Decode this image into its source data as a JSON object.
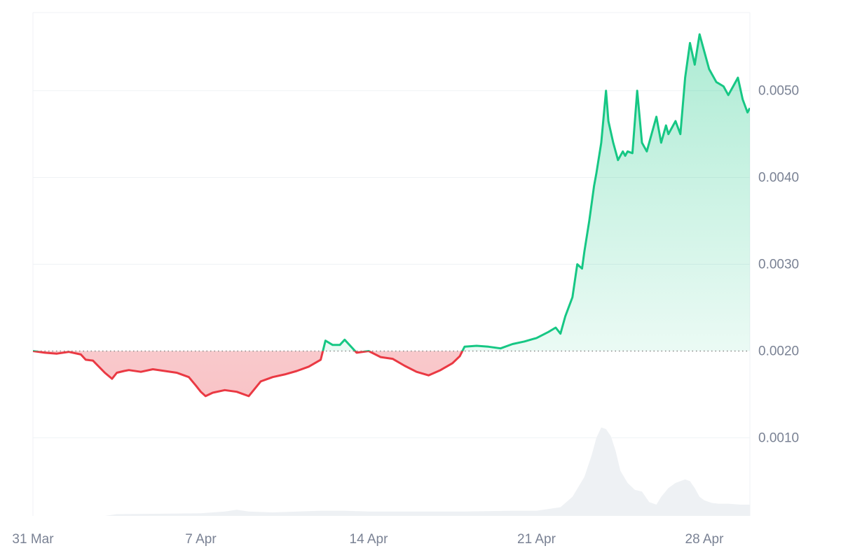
{
  "chart_data": {
    "type": "area",
    "baseline": 0.002,
    "ylim": [
      0.0001,
      0.0059
    ],
    "yticks": [
      0.001,
      0.002,
      0.003,
      0.004,
      0.005
    ],
    "ytick_labels": [
      "0.0010",
      "0.0020",
      "0.0030",
      "0.0040",
      "0.0050"
    ],
    "xticks": [
      "31 Mar",
      "7 Apr",
      "14 Apr",
      "21 Apr",
      "28 Apr"
    ],
    "xlim_days": [
      0,
      29.9
    ],
    "grid": true,
    "colors": {
      "above": "#16c784",
      "below": "#ea3943",
      "above_fill": "#16c784",
      "below_fill": "#ea3943",
      "grid": "#eff2f5",
      "baseline": "#888888",
      "volume": "#eef1f4",
      "tick_text": "#7a8294"
    },
    "series": [
      {
        "x": [
          0.0,
          0.5,
          1.0,
          1.5,
          2.0,
          2.2,
          2.5,
          3.0,
          3.3,
          3.5,
          3.8,
          4.0,
          4.5,
          5.0,
          5.5,
          6.0,
          6.5,
          6.8,
          7.0,
          7.2,
          7.5,
          8.0,
          8.5,
          9.0,
          9.5,
          10.0,
          10.5,
          11.0,
          11.5,
          12.0,
          12.2,
          12.5,
          12.8,
          13.0,
          13.5,
          14.0,
          14.5,
          15.0,
          15.5,
          16.0,
          16.5,
          17.0,
          17.5,
          17.8,
          18.0,
          18.5,
          19.0,
          19.5,
          20.0,
          20.5,
          21.0,
          21.5,
          21.8,
          22.0,
          22.2,
          22.5,
          22.7,
          22.9,
          23.0,
          23.2,
          23.4,
          23.5,
          23.7,
          23.9,
          24.0,
          24.2,
          24.4,
          24.6,
          24.7,
          24.8,
          25.0,
          25.2,
          25.4,
          25.6,
          25.8,
          26.0,
          26.2,
          26.4,
          26.5,
          26.6,
          26.8,
          27.0,
          27.2,
          27.4,
          27.6,
          27.8,
          28.0,
          28.2,
          28.5,
          28.8,
          29.0,
          29.2,
          29.4,
          29.6,
          29.8,
          29.9
        ],
        "y": [
          0.002,
          0.00198,
          0.00197,
          0.00199,
          0.00196,
          0.0019,
          0.00189,
          0.00175,
          0.00168,
          0.00175,
          0.00177,
          0.00178,
          0.00176,
          0.00179,
          0.00177,
          0.00175,
          0.0017,
          0.0016,
          0.00153,
          0.00148,
          0.00152,
          0.00155,
          0.00153,
          0.00148,
          0.00165,
          0.0017,
          0.00173,
          0.00177,
          0.00182,
          0.0019,
          0.00212,
          0.00207,
          0.00207,
          0.00213,
          0.00198,
          0.002,
          0.00193,
          0.00191,
          0.00183,
          0.00176,
          0.00172,
          0.00178,
          0.00186,
          0.00194,
          0.00205,
          0.00206,
          0.00205,
          0.00203,
          0.00208,
          0.00211,
          0.00215,
          0.00222,
          0.00227,
          0.0022,
          0.0024,
          0.00262,
          0.003,
          0.00295,
          0.00315,
          0.0035,
          0.0039,
          0.00405,
          0.0044,
          0.005,
          0.00465,
          0.0044,
          0.0042,
          0.0043,
          0.00425,
          0.0043,
          0.00428,
          0.005,
          0.0044,
          0.0043,
          0.0045,
          0.0047,
          0.0044,
          0.0046,
          0.0045,
          0.00455,
          0.00465,
          0.0045,
          0.00515,
          0.00555,
          0.0053,
          0.00565,
          0.00545,
          0.00525,
          0.0051,
          0.00505,
          0.00495,
          0.00505,
          0.00515,
          0.0049,
          0.00475,
          0.0048
        ]
      }
    ],
    "volume": {
      "x": [
        0,
        3,
        3.5,
        7,
        8,
        8.5,
        9,
        10,
        12,
        13,
        14,
        15,
        17,
        18,
        20,
        21,
        22,
        22.5,
        23,
        23.3,
        23.5,
        23.7,
        23.9,
        24.1,
        24.3,
        24.5,
        24.8,
        25.1,
        25.4,
        25.7,
        26.0,
        26.2,
        26.5,
        26.8,
        27.0,
        27.2,
        27.4,
        27.6,
        27.8,
        28.0,
        28.3,
        28.6,
        29.0,
        29.5,
        29.9
      ],
      "values": [
        0.0,
        0.0,
        2e-05,
        3e-05,
        5e-05,
        7e-05,
        5e-05,
        4e-05,
        6e-05,
        6e-05,
        5e-05,
        5e-05,
        5e-05,
        5e-05,
        6e-05,
        6e-05,
        0.0001,
        0.00022,
        0.00045,
        0.0007,
        0.0009,
        0.00102,
        0.001,
        0.00092,
        0.00075,
        0.00052,
        0.00038,
        0.0003,
        0.00028,
        0.00016,
        0.00013,
        0.00022,
        0.00032,
        0.00038,
        0.0004,
        0.00042,
        0.0004,
        0.00032,
        0.00022,
        0.00018,
        0.00015,
        0.00014,
        0.00014,
        0.00013,
        0.00013
      ]
    }
  }
}
